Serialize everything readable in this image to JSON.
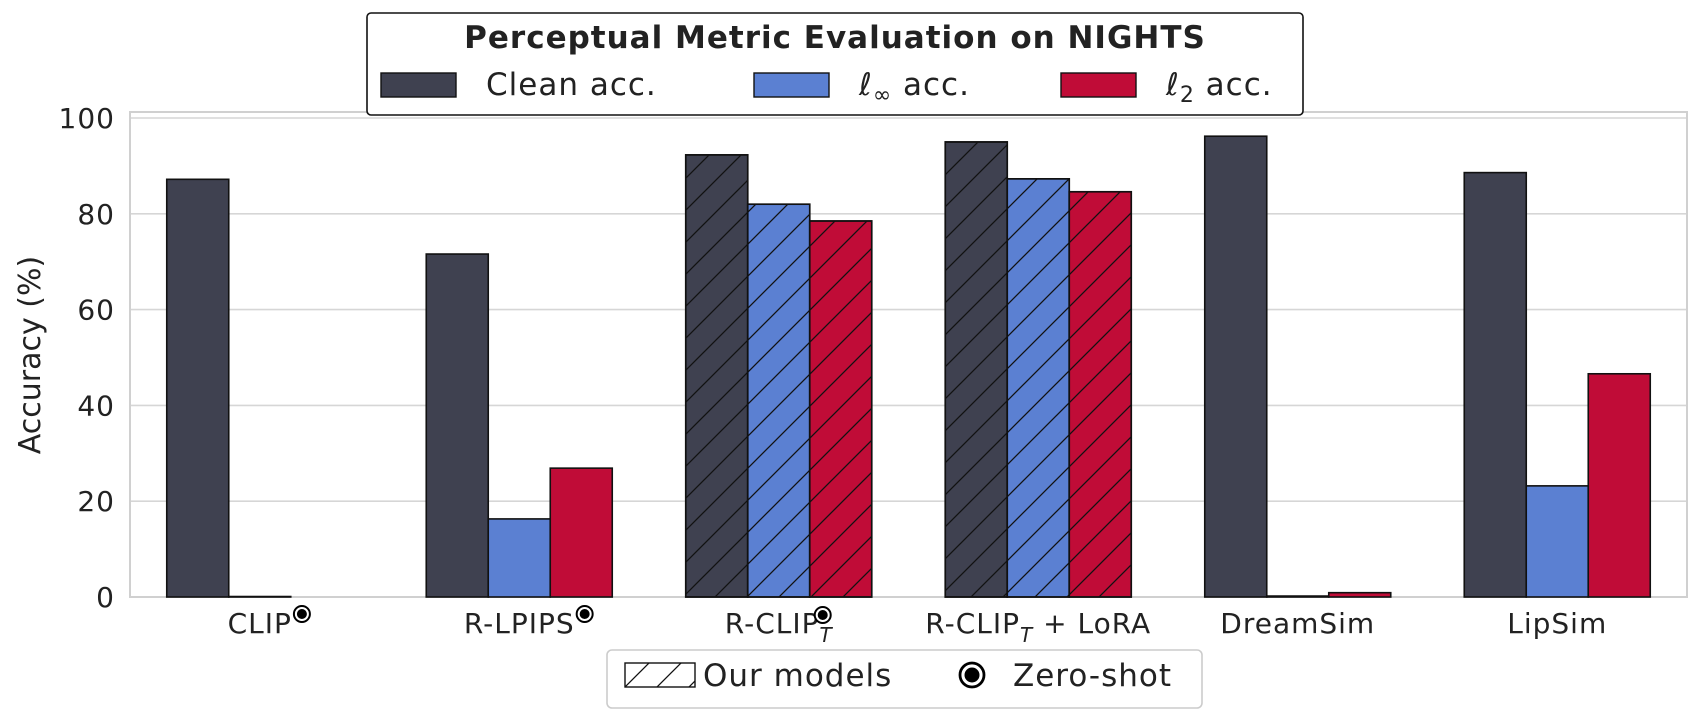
{
  "chart_data": {
    "type": "bar",
    "title": "Perceptual Metric Evaluation on NIGHTS",
    "ylabel": "Accuracy (%)",
    "xlabel": "",
    "ylim": [
      0,
      100
    ],
    "yticks": [
      0,
      20,
      40,
      60,
      80,
      100
    ],
    "grid": true,
    "legend_position": "top-center",
    "categories": [
      "CLIP",
      "R-LPIPS",
      "R-CLIP",
      "R-CLIP + LoRA",
      "DreamSim",
      "LipSim"
    ],
    "category_labels": [
      {
        "base": "CLIP",
        "sub": "",
        "suffix": "",
        "zero_shot": true
      },
      {
        "base": "R-LPIPS",
        "sub": "",
        "suffix": "",
        "zero_shot": true
      },
      {
        "base": "R-CLIP",
        "sub": "T",
        "suffix": "",
        "zero_shot": true
      },
      {
        "base": "R-CLIP",
        "sub": "T",
        "suffix": " + LoRA",
        "zero_shot": false
      },
      {
        "base": "DreamSim",
        "sub": "",
        "suffix": "",
        "zero_shot": false
      },
      {
        "base": "LipSim",
        "sub": "",
        "suffix": "",
        "zero_shot": false
      }
    ],
    "our_models": [
      false,
      false,
      true,
      true,
      false,
      false
    ],
    "series": [
      {
        "name": "Clean acc.",
        "color": "#3f4150",
        "values": [
          87.2,
          71.6,
          92.3,
          95.0,
          96.2,
          88.6
        ]
      },
      {
        "name": "ℓ∞ acc.",
        "name_base": "ℓ",
        "name_sub": "∞",
        "name_rest": " acc.",
        "color": "#5b80d2",
        "values": [
          0.1,
          16.3,
          82.0,
          87.3,
          0.2,
          23.2
        ]
      },
      {
        "name": "ℓ2 acc.",
        "name_base": "ℓ",
        "name_sub": "2",
        "name_rest": " acc.",
        "color": "#c00c37",
        "values": [
          0.0,
          26.9,
          78.5,
          84.6,
          0.9,
          46.6
        ]
      }
    ],
    "bottom_legend": [
      {
        "label": "Our models",
        "marker": "hatch"
      },
      {
        "label": "Zero-shot",
        "marker": "zero-shot-icon"
      }
    ]
  }
}
